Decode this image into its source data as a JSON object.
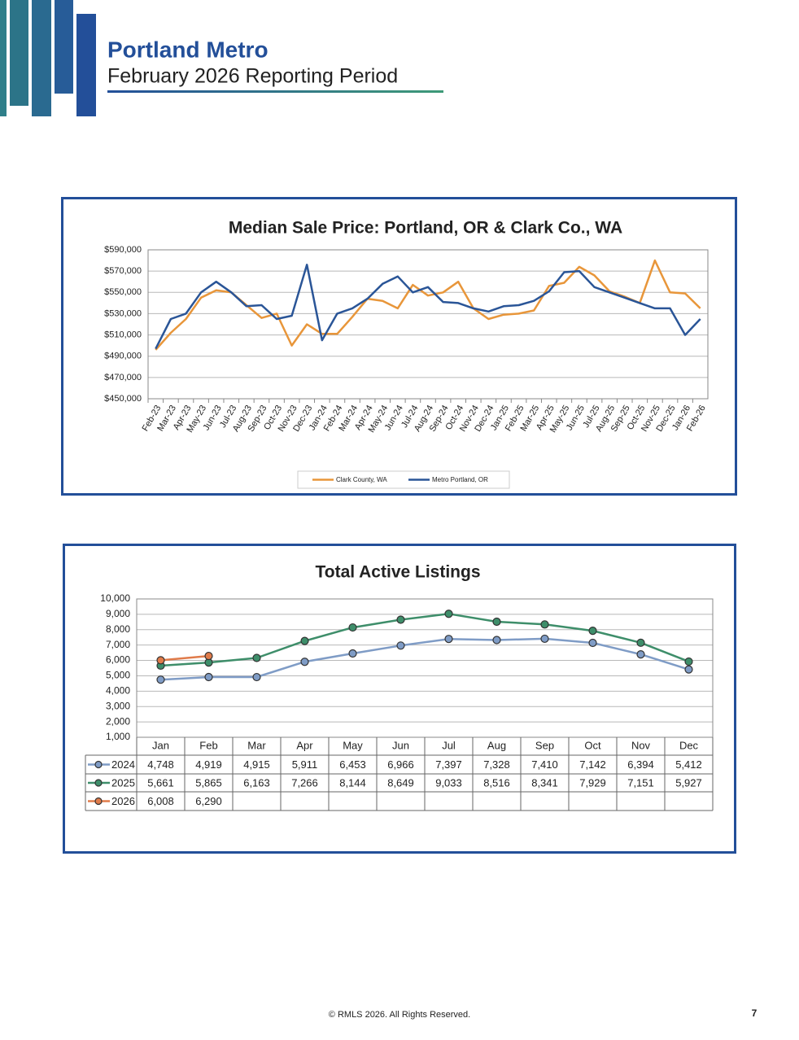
{
  "header": {
    "title": "Portland Metro",
    "subtitle": "February 2026 Reporting Period"
  },
  "footer": {
    "copyright": "© RMLS 2026. All Rights Reserved.",
    "page": 7
  },
  "chart_data": [
    {
      "type": "line",
      "title": "Median Sale Price: Portland, OR & Clark Co., WA",
      "grid": true,
      "legend": "bottom",
      "categories": [
        "Feb-23",
        "Mar-23",
        "Apr-23",
        "May-23",
        "Jun-23",
        "Jul-23",
        "Aug-23",
        "Sep-23",
        "Oct-23",
        "Nov-23",
        "Dec-23",
        "Jan-24",
        "Feb-24",
        "Mar-24",
        "Apr-24",
        "May-24",
        "Jun-24",
        "Jul-24",
        "Aug-24",
        "Sep-24",
        "Oct-24",
        "Nov-24",
        "Dec-24",
        "Jan-25",
        "Feb-25",
        "Mar-25",
        "Apr-25",
        "May-25",
        "Jun-25",
        "Jul-25",
        "Aug-25",
        "Sep-25",
        "Oct-25",
        "Nov-25",
        "Dec-25",
        "Jan-26",
        "Feb-26"
      ],
      "series": [
        {
          "name": "Clark County, WA",
          "color": "#e8963a",
          "values": [
            496000,
            512000,
            525000,
            545000,
            552000,
            550000,
            538000,
            526000,
            530000,
            500000,
            520000,
            511000,
            511000,
            527000,
            544000,
            542000,
            535000,
            557000,
            547000,
            550000,
            560000,
            535000,
            525000,
            529000,
            530000,
            533000,
            556000,
            559000,
            574000,
            566000,
            551000,
            546000,
            540000,
            580000,
            550000,
            549000,
            535000
          ]
        },
        {
          "name": "Metro Portland, OR",
          "color": "#2a5597",
          "values": [
            497000,
            525000,
            530000,
            550000,
            560000,
            550000,
            537000,
            538000,
            525000,
            528000,
            576000,
            505000,
            530000,
            535000,
            544000,
            558000,
            565000,
            550000,
            555000,
            541000,
            540000,
            535000,
            532000,
            537000,
            538000,
            542000,
            551000,
            569000,
            570000,
            555000,
            550000,
            545000,
            540000,
            535000,
            535000,
            510000,
            525000
          ]
        }
      ],
      "ylim": [
        450000,
        590000
      ],
      "yticks": [
        {
          "value": 450000,
          "label": "$450,000"
        },
        {
          "value": 470000,
          "label": "$470,000"
        },
        {
          "value": 490000,
          "label": "$490,000"
        },
        {
          "value": 510000,
          "label": "$510,000"
        },
        {
          "value": 530000,
          "label": "$530,000"
        },
        {
          "value": 550000,
          "label": "$550,000"
        },
        {
          "value": 570000,
          "label": "$570,000"
        },
        {
          "value": 590000,
          "label": "$590,000"
        }
      ]
    },
    {
      "type": "line",
      "title": "Total Active Listings",
      "grid": true,
      "legend": "table",
      "categories": [
        "Jan",
        "Feb",
        "Mar",
        "Apr",
        "May",
        "Jun",
        "Jul",
        "Aug",
        "Sep",
        "Oct",
        "Nov",
        "Dec"
      ],
      "series": [
        {
          "name": "2024",
          "color": "#7f9cc6",
          "values": [
            4748,
            4919,
            4915,
            5911,
            6453,
            6966,
            7397,
            7328,
            7410,
            7142,
            6394,
            5412
          ],
          "value_labels": [
            "4,748",
            "4,919",
            "4,915",
            "5,911",
            "6,453",
            "6,966",
            "7,397",
            "7,328",
            "7,410",
            "7,142",
            "6,394",
            "5,412"
          ]
        },
        {
          "name": "2025",
          "color": "#3e8e6a",
          "values": [
            5661,
            5865,
            6163,
            7266,
            8144,
            8649,
            9033,
            8516,
            8341,
            7929,
            7151,
            5927
          ],
          "value_labels": [
            "5,661",
            "5,865",
            "6,163",
            "7,266",
            "8,144",
            "8,649",
            "9,033",
            "8,516",
            "8,341",
            "7,929",
            "7,151",
            "5,927"
          ]
        },
        {
          "name": "2026",
          "color": "#e07b4a",
          "values": [
            6008,
            6290,
            null,
            null,
            null,
            null,
            null,
            null,
            null,
            null,
            null,
            null
          ],
          "value_labels": [
            "6,008",
            "6,290",
            null,
            null,
            null,
            null,
            null,
            null,
            null,
            null,
            null,
            null
          ]
        }
      ],
      "ylim": [
        1000,
        10000
      ],
      "yticks": [
        {
          "value": 1000,
          "label": "1,000"
        },
        {
          "value": 2000,
          "label": "2,000"
        },
        {
          "value": 3000,
          "label": "3,000"
        },
        {
          "value": 4000,
          "label": "4,000"
        },
        {
          "value": 5000,
          "label": "5,000"
        },
        {
          "value": 6000,
          "label": "6,000"
        },
        {
          "value": 7000,
          "label": "7,000"
        },
        {
          "value": 8000,
          "label": "8,000"
        },
        {
          "value": 9000,
          "label": "9,000"
        },
        {
          "value": 10000,
          "label": "10,000"
        }
      ]
    }
  ]
}
